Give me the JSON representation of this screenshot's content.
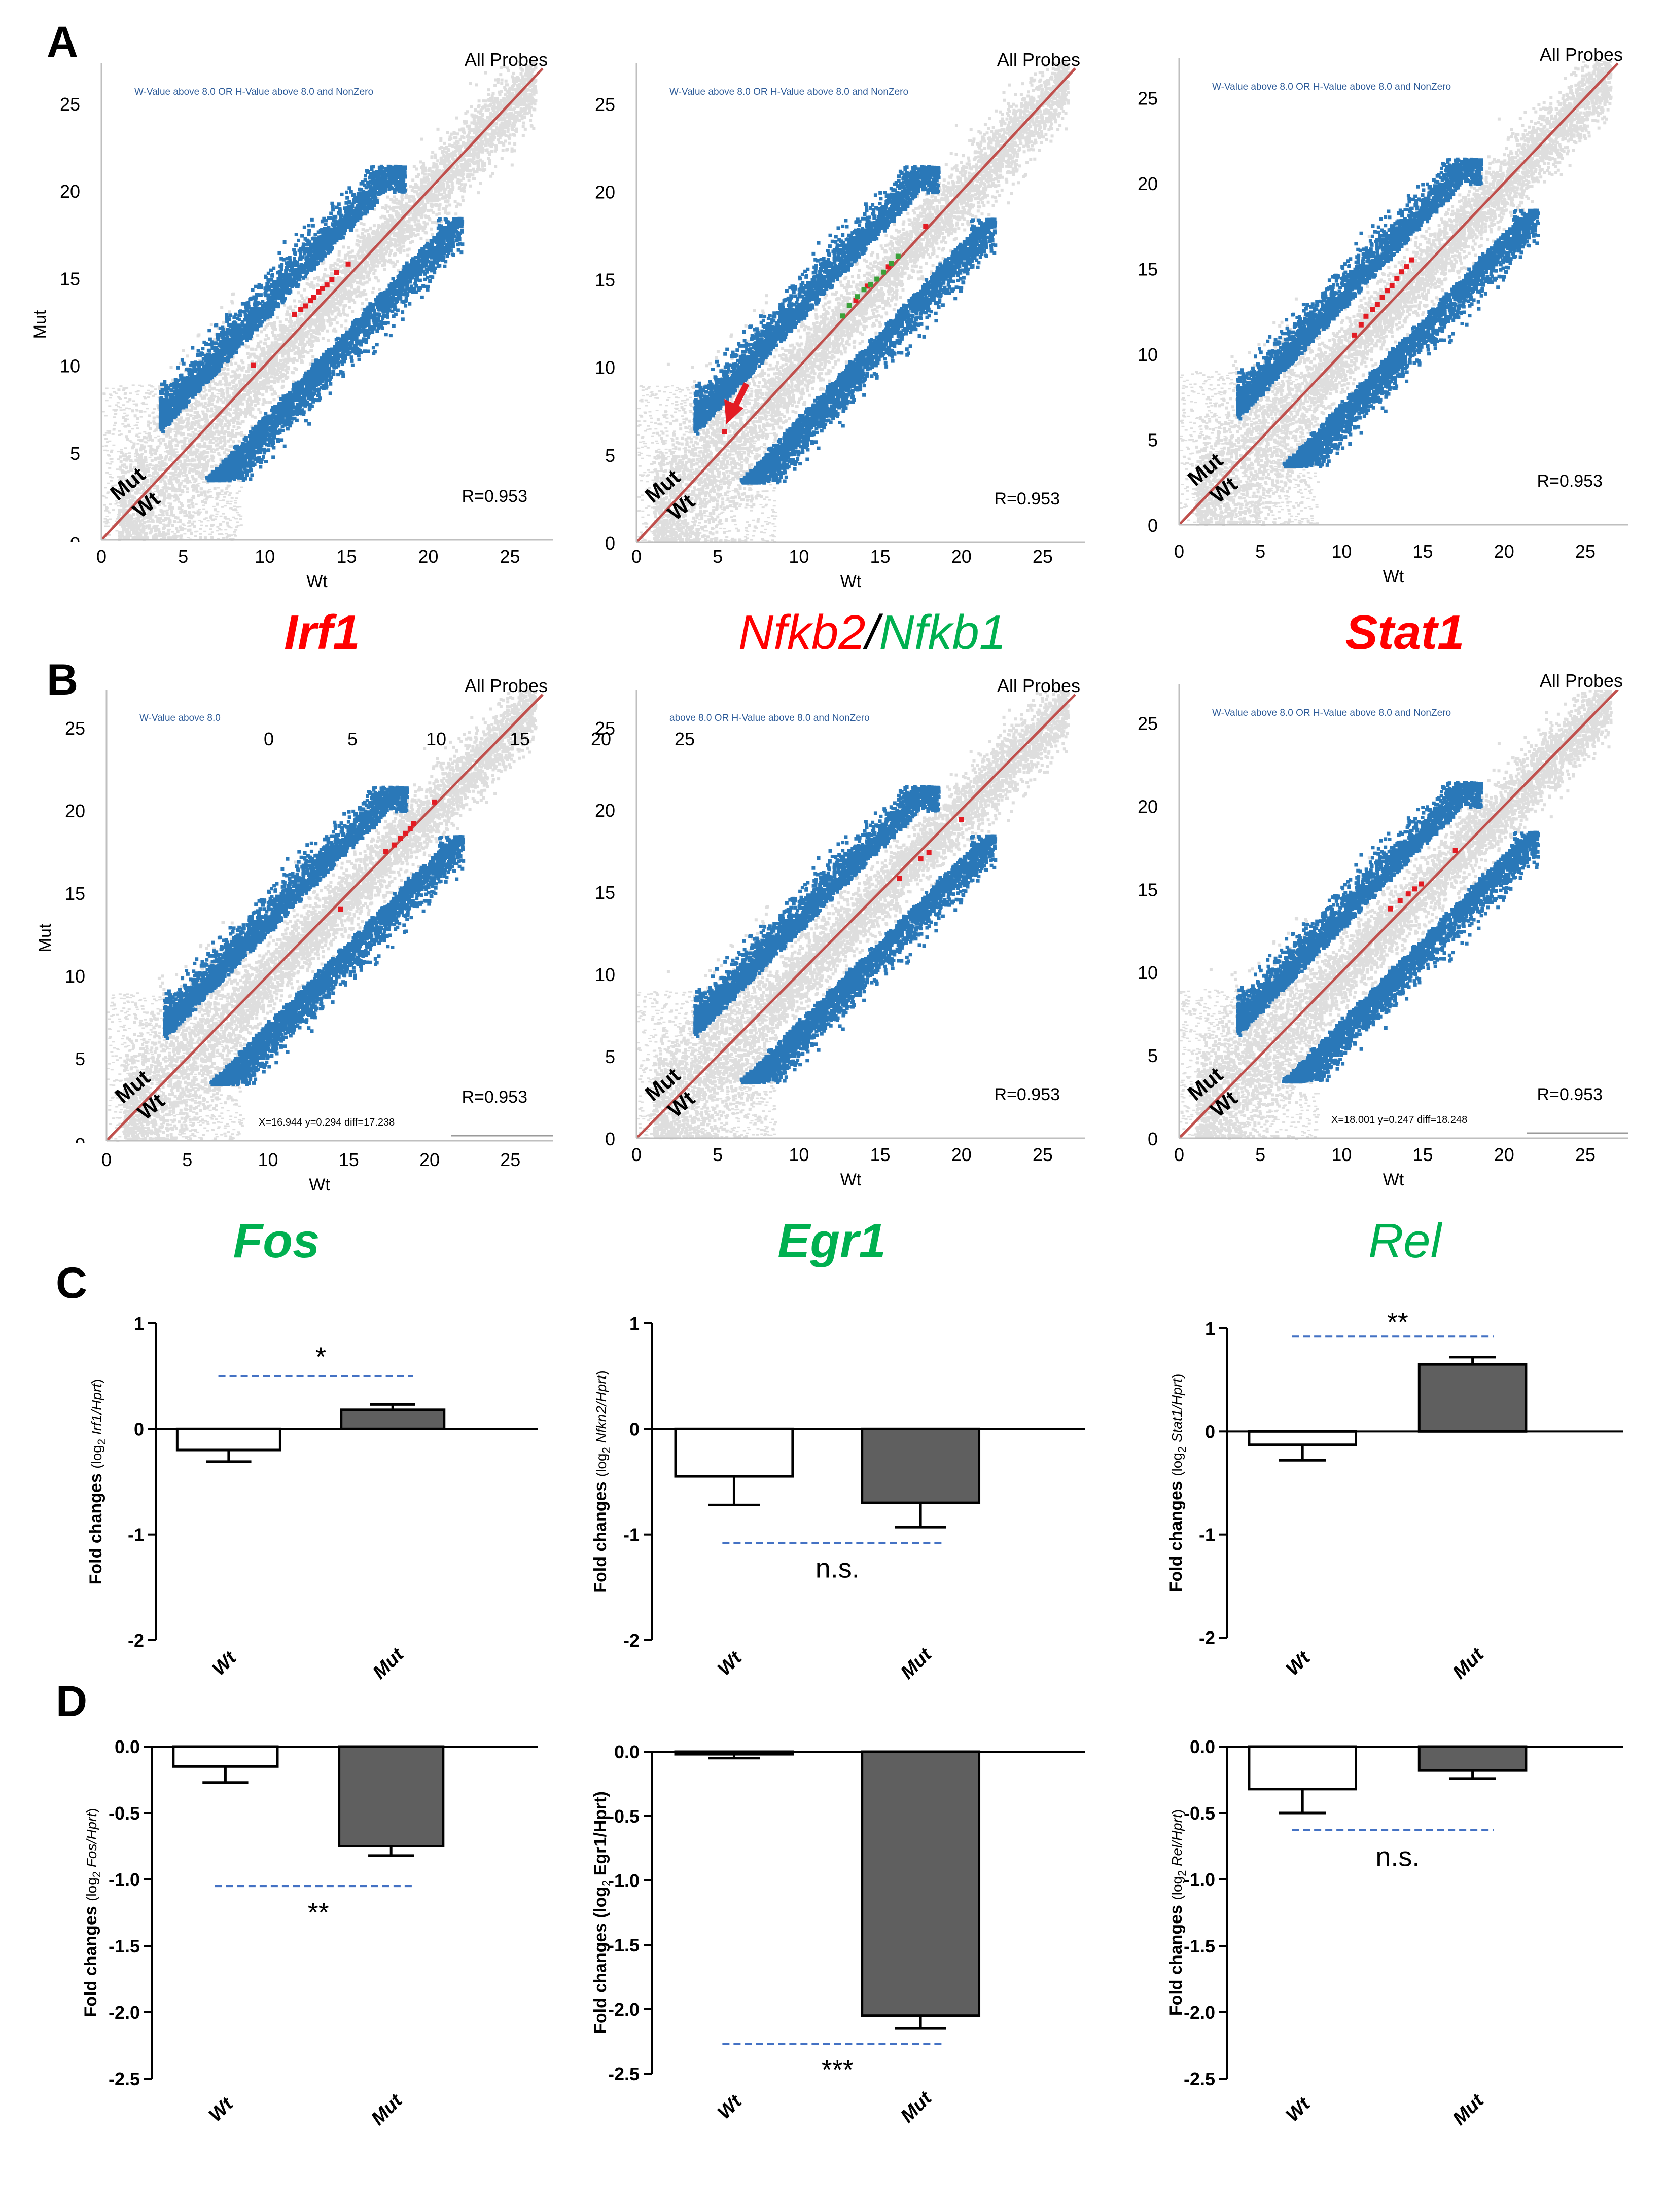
{
  "colors": {
    "background_points": "#dedede",
    "significant_points": "#2a78b8",
    "highlight_red": "#e31b23",
    "highlight_green": "#3aa13a",
    "diagonal": "#c0504d",
    "wt_bar": "#ffffff",
    "mut_bar": "#5f5f5f",
    "sig_line": "#4472c4",
    "gene_red": "#ff0000",
    "gene_green": "#00b050",
    "filter_text": "#2e5c99"
  },
  "panel_labels": [
    "A",
    "B",
    "C",
    "D"
  ],
  "scatter_common": {
    "xlabel": "Wt",
    "ylabel": "Mut",
    "probes_label": "All Probes",
    "r_value": "R=0.953",
    "mut_tag": "Mut",
    "wt_tag": "Wt",
    "ticks": [
      "0",
      "5",
      "10",
      "15",
      "20",
      "25"
    ]
  },
  "chart_data": [
    {
      "type": "scatter",
      "panel": "A",
      "gene": "Irf1",
      "gene_color": "#ff0000",
      "filter": "W-Value above 8.0 OR H-Value above 8.0 and NonZero",
      "xlim": [
        0,
        27
      ],
      "ylim": [
        0,
        27
      ],
      "y_ticks": [
        "0",
        "5",
        "10",
        "15",
        "20",
        "25"
      ],
      "y_first_tick_glyph": "ᴖ",
      "highlight_color": "#e31b23",
      "highlight_points": [
        [
          9.3,
          10.0
        ],
        [
          11.8,
          12.9
        ],
        [
          12.2,
          13.2
        ],
        [
          12.5,
          13.4
        ],
        [
          12.8,
          13.7
        ],
        [
          13.0,
          13.9
        ],
        [
          13.3,
          14.2
        ],
        [
          13.5,
          14.4
        ],
        [
          13.8,
          14.6
        ],
        [
          14.1,
          14.9
        ],
        [
          14.4,
          15.3
        ],
        [
          15.1,
          15.8
        ]
      ],
      "r": 0.953
    },
    {
      "type": "scatter",
      "panel": "A",
      "gene": "Nfkb2/Nfkb1",
      "gene_parts": [
        {
          "text": "Nfkb2",
          "color": "#ff0000"
        },
        {
          "text": "/",
          "color": "#000000"
        },
        {
          "text": "Nfkb1",
          "color": "#00b050"
        }
      ],
      "filter": "W-Value above 8.0 OR H-Value above 8.0 and NonZero",
      "xlim": [
        0,
        27
      ],
      "ylim": [
        0,
        27
      ],
      "y_ticks": [
        "0",
        "5",
        "10",
        "15",
        "20",
        "25"
      ],
      "highlight_color": "#e31b23",
      "highlight_points": [
        [
          5.4,
          6.3
        ],
        [
          13.5,
          13.8
        ],
        [
          14.2,
          14.6
        ],
        [
          15.5,
          15.7
        ],
        [
          17.8,
          18.0
        ]
      ],
      "secondary_color": "#3aa13a",
      "secondary_points": [
        [
          12.7,
          12.9
        ],
        [
          13.1,
          13.5
        ],
        [
          13.6,
          14.0
        ],
        [
          14.0,
          14.4
        ],
        [
          14.4,
          14.7
        ],
        [
          14.8,
          15.0
        ],
        [
          15.2,
          15.4
        ],
        [
          15.7,
          15.9
        ],
        [
          16.1,
          16.3
        ]
      ],
      "arrow_target": [
        5.4,
        6.5
      ],
      "r": 0.953
    },
    {
      "type": "scatter",
      "panel": "A",
      "gene": "Stat1",
      "gene_color": "#ff0000",
      "filter": "W-Value above 8.0 OR H-Value above 8.0 and NonZero",
      "xlim": [
        0,
        27
      ],
      "ylim": [
        0,
        27
      ],
      "y_ticks": [
        "0",
        "5",
        "10",
        "15",
        "20",
        "25"
      ],
      "highlight_color": "#e31b23",
      "highlight_points": [
        [
          10.8,
          11.1
        ],
        [
          11.2,
          11.7
        ],
        [
          11.5,
          12.2
        ],
        [
          11.9,
          12.6
        ],
        [
          12.2,
          12.9
        ],
        [
          12.5,
          13.3
        ],
        [
          12.8,
          13.7
        ],
        [
          13.1,
          14.0
        ],
        [
          13.4,
          14.4
        ],
        [
          13.7,
          14.8
        ],
        [
          14.0,
          15.1
        ],
        [
          14.3,
          15.5
        ]
      ],
      "r": 0.953
    },
    {
      "type": "scatter",
      "panel": "B",
      "gene": "Fos",
      "gene_color": "#00b050",
      "filter": "W-Value above 8.0",
      "xlim": [
        0,
        27
      ],
      "ylim": [
        0,
        27
      ],
      "y_ticks": [
        "0",
        "5",
        "10",
        "15",
        "20",
        "25"
      ],
      "y_first_tick_glyph": "ᴖ",
      "inset_ticks": [
        "0",
        "5",
        "10",
        "15"
      ],
      "coord_readout": "X=16.944 y=0.294 diff=17.238",
      "highlight_color": "#e31b23",
      "highlight_points": [
        [
          14.5,
          14.0
        ],
        [
          17.3,
          17.5
        ],
        [
          17.8,
          17.9
        ],
        [
          18.2,
          18.3
        ],
        [
          18.5,
          18.6
        ],
        [
          18.8,
          18.9
        ],
        [
          19.0,
          19.2
        ],
        [
          20.3,
          20.5
        ]
      ],
      "r": 0.953
    },
    {
      "type": "scatter",
      "panel": "B",
      "gene": "Egr1",
      "gene_color": "#00b050",
      "filter": "above 8.0 OR H-Value above 8.0 and NonZero",
      "xlim": [
        0,
        27
      ],
      "ylim": [
        0,
        27
      ],
      "y_ticks": [
        "0",
        "5",
        "10",
        "15",
        "20",
        "25"
      ],
      "inset_ticks": [
        "20",
        "25"
      ],
      "highlight_color": "#e31b23",
      "highlight_points": [
        [
          16.2,
          15.8
        ],
        [
          17.5,
          17.0
        ],
        [
          18.0,
          17.4
        ],
        [
          20.0,
          19.4
        ]
      ],
      "r": 0.953
    },
    {
      "type": "scatter",
      "panel": "B",
      "gene": "Rel",
      "gene_color": "#00b050",
      "gene_bold": false,
      "filter": "W-Value above 8.0 OR H-Value above 8.0 and NonZero",
      "xlim": [
        0,
        27
      ],
      "ylim": [
        0,
        27
      ],
      "y_ticks": [
        "0",
        "5",
        "10",
        "15",
        "20",
        "25"
      ],
      "coord_readout": "X=18.001 y=0.247 diff=18.248",
      "highlight_color": "#e31b23",
      "highlight_points": [
        [
          13.0,
          13.8
        ],
        [
          13.6,
          14.3
        ],
        [
          14.1,
          14.7
        ],
        [
          14.5,
          15.0
        ],
        [
          14.9,
          15.3
        ],
        [
          17.0,
          17.3
        ]
      ],
      "r": 0.953
    },
    {
      "type": "bar",
      "panel": "C",
      "ylabel_main": "Fold changes",
      "ylabel_sub": "(log",
      "ylabel_sub2": "2",
      "ylabel_gene": "Irf1/Hprt",
      "ylabel_close": ")",
      "categories": [
        "Wt",
        "Mut"
      ],
      "values": [
        -0.2,
        0.18
      ],
      "errors": [
        0.11,
        0.05
      ],
      "ylim": [
        -2,
        1
      ],
      "yticks": [
        1,
        0,
        -1,
        -2
      ],
      "ytick_labels": [
        "1",
        "0",
        "-1",
        "-2"
      ],
      "significance": "*",
      "sig_position": "above",
      "sig_y": 0.5,
      "sig_label_y": 0.68
    },
    {
      "type": "bar",
      "panel": "C",
      "ylabel_main": "Fold changes",
      "ylabel_sub": "(log",
      "ylabel_sub2": "2",
      "ylabel_gene": "Nfkn2/Hprt",
      "ylabel_close": ")",
      "categories": [
        "Wt",
        "Mut"
      ],
      "values": [
        -0.45,
        -0.7
      ],
      "errors": [
        0.27,
        0.23
      ],
      "ylim": [
        -2,
        1
      ],
      "yticks": [
        1,
        0,
        -1,
        -2
      ],
      "ytick_labels": [
        "1",
        "0",
        "-1",
        "-2"
      ],
      "significance": "n.s.",
      "sig_position": "below",
      "sig_y": -1.08,
      "sig_label_y": -1.32
    },
    {
      "type": "bar",
      "panel": "C",
      "ylabel_main": "Fold changes",
      "ylabel_sub": "(log",
      "ylabel_sub2": "2",
      "ylabel_gene": "Stat1/Hprt",
      "ylabel_close": ")",
      "categories": [
        "Wt",
        "Mut"
      ],
      "values": [
        -0.13,
        0.65
      ],
      "errors": [
        0.15,
        0.07
      ],
      "ylim": [
        -2,
        1
      ],
      "yticks": [
        1,
        0,
        -1,
        -2
      ],
      "ytick_labels": [
        "1",
        "0",
        "-1",
        "-2"
      ],
      "significance": "**",
      "sig_position": "above",
      "sig_y": 0.92,
      "sig_label_y": 1.06
    },
    {
      "type": "bar",
      "panel": "D",
      "ylabel_main": "Fold changes",
      "ylabel_sub": "(log",
      "ylabel_sub2": "2",
      "ylabel_gene": "Fos/Hprt",
      "ylabel_close": ")",
      "categories": [
        "Wt",
        "Mut"
      ],
      "values": [
        -0.15,
        -0.75
      ],
      "errors": [
        0.12,
        0.07
      ],
      "ylim": [
        -2.5,
        0
      ],
      "yticks": [
        0,
        -0.5,
        -1,
        -1.5,
        -2,
        -2.5
      ],
      "ytick_labels": [
        "0.0",
        "-0.5",
        "-1.0",
        "-1.5",
        "-2.0",
        "-2.5"
      ],
      "significance": "**",
      "sig_position": "below",
      "sig_y": -1.05,
      "sig_label_y": -1.25
    },
    {
      "type": "bar",
      "panel": "D",
      "ylabel_main": "Fold changes",
      "ylabel_sub": "(log",
      "ylabel_sub2": "2",
      "ylabel_gene": "Egr1/Hprt",
      "ylabel_close": ")",
      "ylabel_bold_all": true,
      "categories": [
        "Wt",
        "Mut"
      ],
      "values": [
        -0.02,
        -2.05
      ],
      "errors": [
        0.03,
        0.1
      ],
      "ylim": [
        -2.5,
        0
      ],
      "yticks": [
        0,
        -0.5,
        -1,
        -1.5,
        -2,
        -2.5
      ],
      "ytick_labels": [
        "0.0",
        "-0.5",
        "-1.0",
        "-1.5",
        "-2.0",
        "-2.5"
      ],
      "significance": "***",
      "sig_position": "below",
      "sig_y": -2.27,
      "sig_label_y": -2.47
    },
    {
      "type": "bar",
      "panel": "D",
      "ylabel_main": "Fold changes",
      "ylabel_sub": "(log",
      "ylabel_sub2": "2",
      "ylabel_gene": "Rel/Hprt",
      "ylabel_close": ")",
      "categories": [
        "Wt",
        "Mut"
      ],
      "values": [
        -0.32,
        -0.18
      ],
      "errors": [
        0.18,
        0.06
      ],
      "ylim": [
        -2.5,
        0
      ],
      "yticks": [
        0,
        -0.5,
        -1,
        -1.5,
        -2,
        -2.5
      ],
      "ytick_labels": [
        "0.0",
        "-0.5",
        "-1.0",
        "-1.5",
        "-2.0",
        "-2.5"
      ],
      "significance": "n.s.",
      "sig_position": "below",
      "sig_y": -0.63,
      "sig_label_y": -0.83
    }
  ]
}
